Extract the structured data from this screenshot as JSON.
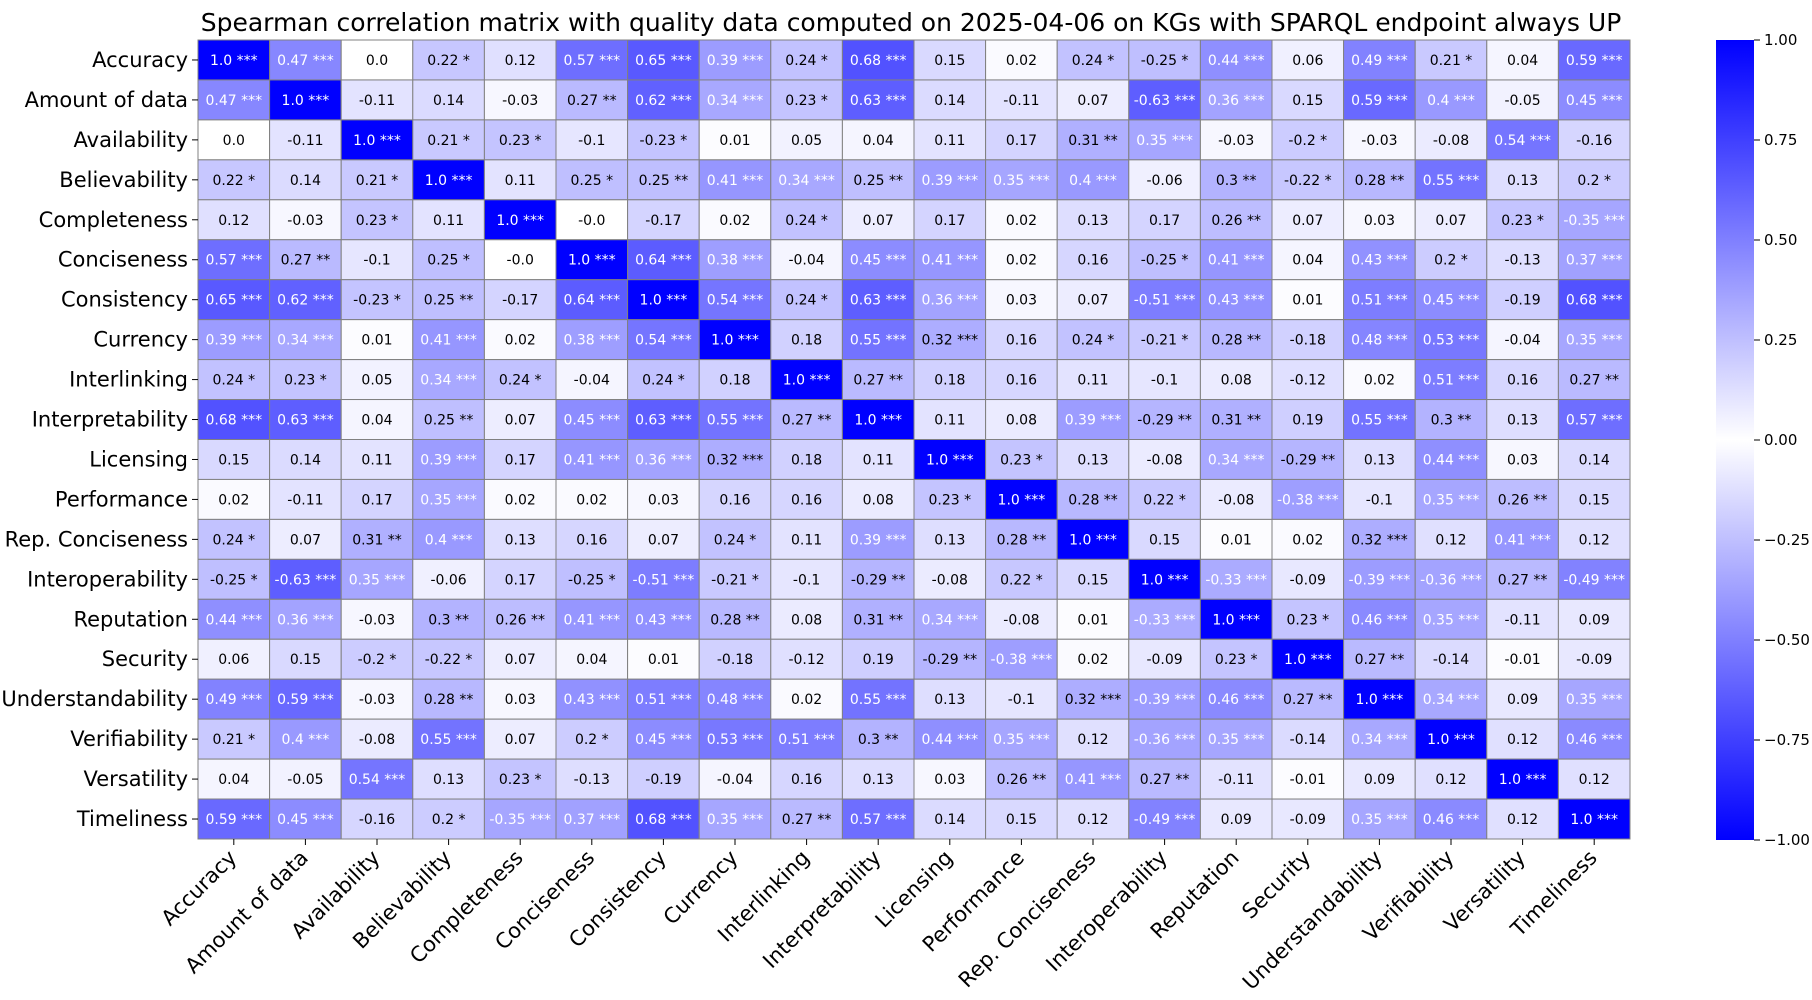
{
  "chart_data": {
    "type": "heatmap",
    "title": "Spearman correlation matrix with quality data computed on 2025-04-06 on KGs with SPARQL endpoint always UP",
    "labels": [
      "Accuracy",
      "Amount of data",
      "Availability",
      "Believability",
      "Completeness",
      "Conciseness",
      "Consistency",
      "Currency",
      "Interlinking",
      "Interpretability",
      "Licensing",
      "Performance",
      "Rep. Conciseness",
      "Interoperability",
      "Reputation",
      "Security",
      "Understandability",
      "Verifiability",
      "Versatility",
      "Timeliness"
    ],
    "cells": [
      [
        "1.0 ***",
        "0.47 ***",
        "0.0",
        "0.22 *",
        "0.12",
        "0.57 ***",
        "0.65 ***",
        "0.39 ***",
        "0.24 *",
        "0.68 ***",
        "0.15",
        "0.02",
        "0.24 *",
        "-0.25 *",
        "0.44 ***",
        "0.06",
        "0.49 ***",
        "0.21 *",
        "0.04",
        "0.59 ***"
      ],
      [
        "0.47 ***",
        "1.0 ***",
        "-0.11",
        "0.14",
        "-0.03",
        "0.27 **",
        "0.62 ***",
        "0.34 ***",
        "0.23 *",
        "0.63 ***",
        "0.14",
        "-0.11",
        "0.07",
        "-0.63 ***",
        "0.36 ***",
        "0.15",
        "0.59 ***",
        "0.4 ***",
        "-0.05",
        "0.45 ***"
      ],
      [
        "0.0",
        "-0.11",
        "1.0 ***",
        "0.21 *",
        "0.23 *",
        "-0.1",
        "-0.23 *",
        "0.01",
        "0.05",
        "0.04",
        "0.11",
        "0.17",
        "0.31 **",
        "0.35 ***",
        "-0.03",
        "-0.2 *",
        "-0.03",
        "-0.08",
        "0.54 ***",
        "-0.16"
      ],
      [
        "0.22 *",
        "0.14",
        "0.21 *",
        "1.0 ***",
        "0.11",
        "0.25 *",
        "0.25 **",
        "0.41 ***",
        "0.34 ***",
        "0.25 **",
        "0.39 ***",
        "0.35 ***",
        "0.4 ***",
        "-0.06",
        "0.3 **",
        "-0.22 *",
        "0.28 **",
        "0.55 ***",
        "0.13",
        "0.2 *"
      ],
      [
        "0.12",
        "-0.03",
        "0.23 *",
        "0.11",
        "1.0 ***",
        "-0.0",
        "-0.17",
        "0.02",
        "0.24 *",
        "0.07",
        "0.17",
        "0.02",
        "0.13",
        "0.17",
        "0.26 **",
        "0.07",
        "0.03",
        "0.07",
        "0.23 *",
        "-0.35 ***"
      ],
      [
        "0.57 ***",
        "0.27 **",
        "-0.1",
        "0.25 *",
        "-0.0",
        "1.0 ***",
        "0.64 ***",
        "0.38 ***",
        "-0.04",
        "0.45 ***",
        "0.41 ***",
        "0.02",
        "0.16",
        "-0.25 *",
        "0.41 ***",
        "0.04",
        "0.43 ***",
        "0.2 *",
        "-0.13",
        "0.37 ***"
      ],
      [
        "0.65 ***",
        "0.62 ***",
        "-0.23 *",
        "0.25 **",
        "-0.17",
        "0.64 ***",
        "1.0 ***",
        "0.54 ***",
        "0.24 *",
        "0.63 ***",
        "0.36 ***",
        "0.03",
        "0.07",
        "-0.51 ***",
        "0.43 ***",
        "0.01",
        "0.51 ***",
        "0.45 ***",
        "-0.19",
        "0.68 ***"
      ],
      [
        "0.39 ***",
        "0.34 ***",
        "0.01",
        "0.41 ***",
        "0.02",
        "0.38 ***",
        "0.54 ***",
        "1.0 ***",
        "0.18",
        "0.55 ***",
        "0.32 ***",
        "0.16",
        "0.24 *",
        "-0.21 *",
        "0.28 **",
        "-0.18",
        "0.48 ***",
        "0.53 ***",
        "-0.04",
        "0.35 ***"
      ],
      [
        "0.24 *",
        "0.23 *",
        "0.05",
        "0.34 ***",
        "0.24 *",
        "-0.04",
        "0.24 *",
        "0.18",
        "1.0 ***",
        "0.27 **",
        "0.18",
        "0.16",
        "0.11",
        "-0.1",
        "0.08",
        "-0.12",
        "0.02",
        "0.51 ***",
        "0.16",
        "0.27 **"
      ],
      [
        "0.68 ***",
        "0.63 ***",
        "0.04",
        "0.25 **",
        "0.07",
        "0.45 ***",
        "0.63 ***",
        "0.55 ***",
        "0.27 **",
        "1.0 ***",
        "0.11",
        "0.08",
        "0.39 ***",
        "-0.29 **",
        "0.31 **",
        "0.19",
        "0.55 ***",
        "0.3 **",
        "0.13",
        "0.57 ***"
      ],
      [
        "0.15",
        "0.14",
        "0.11",
        "0.39 ***",
        "0.17",
        "0.41 ***",
        "0.36 ***",
        "0.32 ***",
        "0.18",
        "0.11",
        "1.0 ***",
        "0.23 *",
        "0.13",
        "-0.08",
        "0.34 ***",
        "-0.29 **",
        "0.13",
        "0.44 ***",
        "0.03",
        "0.14"
      ],
      [
        "0.02",
        "-0.11",
        "0.17",
        "0.35 ***",
        "0.02",
        "0.02",
        "0.03",
        "0.16",
        "0.16",
        "0.08",
        "0.23 *",
        "1.0 ***",
        "0.28 **",
        "0.22 *",
        "-0.08",
        "-0.38 ***",
        "-0.1",
        "0.35 ***",
        "0.26 **",
        "0.15"
      ],
      [
        "0.24 *",
        "0.07",
        "0.31 **",
        "0.4 ***",
        "0.13",
        "0.16",
        "0.07",
        "0.24 *",
        "0.11",
        "0.39 ***",
        "0.13",
        "0.28 **",
        "1.0 ***",
        "0.15",
        "0.01",
        "0.02",
        "0.32 ***",
        "0.12",
        "0.41 ***",
        "0.12"
      ],
      [
        "-0.25 *",
        "-0.63 ***",
        "0.35 ***",
        "-0.06",
        "0.17",
        "-0.25 *",
        "-0.51 ***",
        "-0.21 *",
        "-0.1",
        "-0.29 **",
        "-0.08",
        "0.22 *",
        "0.15",
        "1.0 ***",
        "-0.33 ***",
        "-0.09",
        "-0.39 ***",
        "-0.36 ***",
        "0.27 **",
        "-0.49 ***"
      ],
      [
        "0.44 ***",
        "0.36 ***",
        "-0.03",
        "0.3 **",
        "0.26 **",
        "0.41 ***",
        "0.43 ***",
        "0.28 **",
        "0.08",
        "0.31 **",
        "0.34 ***",
        "-0.08",
        "0.01",
        "-0.33 ***",
        "1.0 ***",
        "0.23 *",
        "0.46 ***",
        "0.35 ***",
        "-0.11",
        "0.09"
      ],
      [
        "0.06",
        "0.15",
        "-0.2 *",
        "-0.22 *",
        "0.07",
        "0.04",
        "0.01",
        "-0.18",
        "-0.12",
        "0.19",
        "-0.29 **",
        "-0.38 ***",
        "0.02",
        "-0.09",
        "0.23 *",
        "1.0 ***",
        "0.27 **",
        "-0.14",
        "-0.01",
        "-0.09"
      ],
      [
        "0.49 ***",
        "0.59 ***",
        "-0.03",
        "0.28 **",
        "0.03",
        "0.43 ***",
        "0.51 ***",
        "0.48 ***",
        "0.02",
        "0.55 ***",
        "0.13",
        "-0.1",
        "0.32 ***",
        "-0.39 ***",
        "0.46 ***",
        "0.27 **",
        "1.0 ***",
        "0.34 ***",
        "0.09",
        "0.35 ***"
      ],
      [
        "0.21 *",
        "0.4 ***",
        "-0.08",
        "0.55 ***",
        "0.07",
        "0.2 *",
        "0.45 ***",
        "0.53 ***",
        "0.51 ***",
        "0.3 **",
        "0.44 ***",
        "0.35 ***",
        "0.12",
        "-0.36 ***",
        "0.35 ***",
        "-0.14",
        "0.34 ***",
        "1.0 ***",
        "0.12",
        "0.46 ***"
      ],
      [
        "0.04",
        "-0.05",
        "0.54 ***",
        "0.13",
        "0.23 *",
        "-0.13",
        "-0.19",
        "-0.04",
        "0.16",
        "0.13",
        "0.03",
        "0.26 **",
        "0.41 ***",
        "0.27 **",
        "-0.11",
        "-0.01",
        "0.09",
        "0.12",
        "1.0 ***",
        "0.12"
      ],
      [
        "0.59 ***",
        "0.45 ***",
        "-0.16",
        "0.2 *",
        "-0.35 ***",
        "0.37 ***",
        "0.68 ***",
        "0.35 ***",
        "0.27 **",
        "0.57 ***",
        "0.14",
        "0.15",
        "0.12",
        "-0.49 ***",
        "0.09",
        "-0.09",
        "0.35 ***",
        "0.46 ***",
        "0.12",
        "1.0 ***"
      ]
    ],
    "vmin": -1.0,
    "vmax": 1.0,
    "colormap": {
      "low": "#0000ff",
      "mid": "#ffffff",
      "high": "#0000ff"
    },
    "colorbar_ticks": [
      "1.00",
      "0.75",
      "0.50",
      "0.25",
      "0.00",
      "−0.25",
      "−0.50",
      "−0.75",
      "−1.00"
    ],
    "cell_border_color": "#808080"
  }
}
